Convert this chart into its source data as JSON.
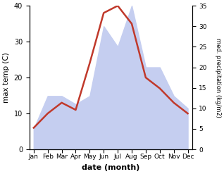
{
  "months": [
    "Jan",
    "Feb",
    "Mar",
    "Apr",
    "May",
    "Jun",
    "Jul",
    "Aug",
    "Sep",
    "Oct",
    "Nov",
    "Dec"
  ],
  "temperature": [
    6,
    10,
    13,
    11,
    24,
    38,
    40,
    35,
    20,
    17,
    13,
    10
  ],
  "precipitation": [
    5,
    13,
    13,
    11,
    13,
    30,
    25,
    35,
    20,
    20,
    13,
    10
  ],
  "temp_color": "#c0392b",
  "precip_fill_color": "#c5cef0",
  "temp_ylim": [
    0,
    40
  ],
  "precip_ylim": [
    0,
    35
  ],
  "temp_yticks": [
    0,
    10,
    20,
    30,
    40
  ],
  "precip_yticks": [
    0,
    5,
    10,
    15,
    20,
    25,
    30,
    35
  ],
  "xlabel": "date (month)",
  "ylabel_left": "max temp (C)",
  "ylabel_right": "med. precipitation (kg/m2)"
}
